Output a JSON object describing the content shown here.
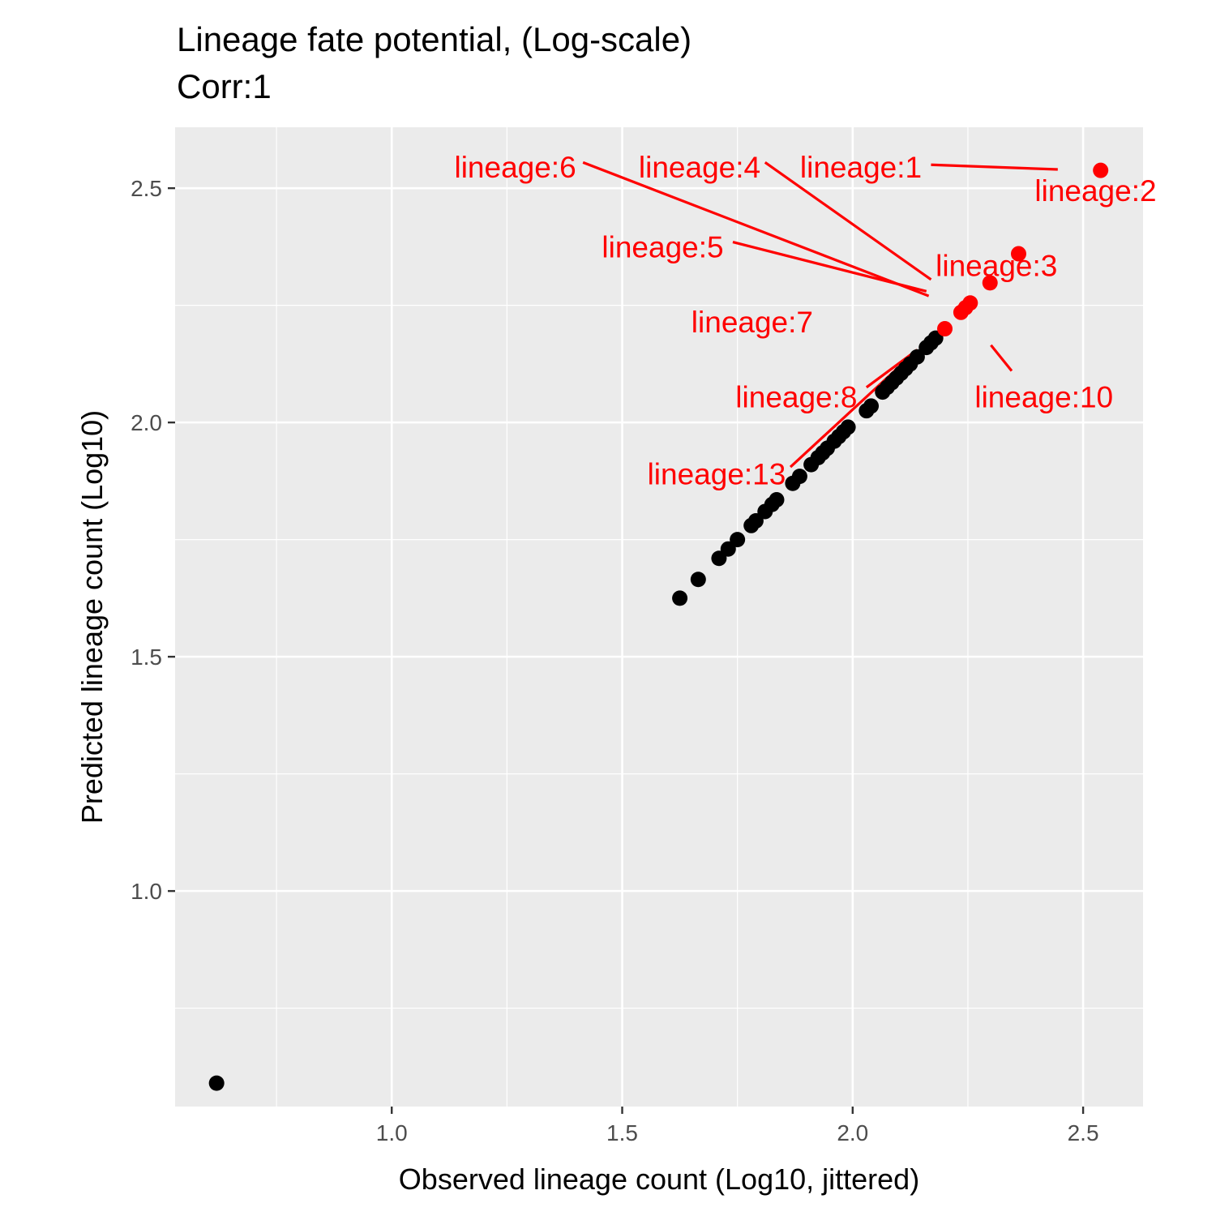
{
  "chart_data": {
    "type": "scatter",
    "title": "Lineage fate potential, (Log-scale)",
    "subtitle": "Corr:1",
    "xlabel": "Observed lineage count (Log10, jittered)",
    "ylabel": "Predicted lineage count (Log10)",
    "xlim": [
      0.53,
      2.63
    ],
    "ylim": [
      0.54,
      2.63
    ],
    "x_ticks": [
      1.0,
      1.5,
      2.0,
      2.5
    ],
    "y_ticks": [
      1.0,
      1.5,
      2.0,
      2.5
    ],
    "x_tick_labels": [
      "1.0",
      "1.5",
      "2.0",
      "2.5"
    ],
    "y_tick_labels": [
      "1.0",
      "1.5",
      "2.0",
      "2.5"
    ],
    "grid": true,
    "colors": {
      "panel": "#ebebeb",
      "grid": "#ffffff",
      "highlight": "#ff0000",
      "point": "#000000"
    },
    "points": [
      {
        "x": 0.62,
        "y": 0.59
      },
      {
        "x": 1.625,
        "y": 1.625
      },
      {
        "x": 1.665,
        "y": 1.665
      },
      {
        "x": 1.71,
        "y": 1.71
      },
      {
        "x": 1.73,
        "y": 1.73
      },
      {
        "x": 1.75,
        "y": 1.75
      },
      {
        "x": 1.78,
        "y": 1.78
      },
      {
        "x": 1.79,
        "y": 1.79
      },
      {
        "x": 1.81,
        "y": 1.81
      },
      {
        "x": 1.825,
        "y": 1.825
      },
      {
        "x": 1.835,
        "y": 1.835
      },
      {
        "x": 1.87,
        "y": 1.87
      },
      {
        "x": 1.885,
        "y": 1.885
      },
      {
        "x": 1.91,
        "y": 1.91
      },
      {
        "x": 1.925,
        "y": 1.925
      },
      {
        "x": 1.935,
        "y": 1.935
      },
      {
        "x": 1.945,
        "y": 1.945
      },
      {
        "x": 1.96,
        "y": 1.96
      },
      {
        "x": 1.97,
        "y": 1.97
      },
      {
        "x": 1.98,
        "y": 1.98
      },
      {
        "x": 1.99,
        "y": 1.99
      },
      {
        "x": 2.03,
        "y": 2.025
      },
      {
        "x": 2.04,
        "y": 2.035
      },
      {
        "x": 2.065,
        "y": 2.065
      },
      {
        "x": 2.075,
        "y": 2.075
      },
      {
        "x": 2.085,
        "y": 2.085
      },
      {
        "x": 2.095,
        "y": 2.095
      },
      {
        "x": 2.105,
        "y": 2.105
      },
      {
        "x": 2.115,
        "y": 2.115
      },
      {
        "x": 2.125,
        "y": 2.125
      },
      {
        "x": 2.14,
        "y": 2.14
      },
      {
        "x": 2.16,
        "y": 2.16
      },
      {
        "x": 2.17,
        "y": 2.17
      },
      {
        "x": 2.18,
        "y": 2.18
      },
      {
        "x": 2.2,
        "y": 2.2,
        "highlight": true
      },
      {
        "x": 2.235,
        "y": 2.235,
        "highlight": true
      },
      {
        "x": 2.245,
        "y": 2.245,
        "highlight": true
      },
      {
        "x": 2.255,
        "y": 2.255,
        "highlight": true
      },
      {
        "x": 2.298,
        "y": 2.298,
        "highlight": true
      },
      {
        "x": 2.36,
        "y": 2.36,
        "highlight": true
      },
      {
        "x": 2.538,
        "y": 2.538,
        "highlight": true
      }
    ],
    "annotations": [
      {
        "text": "lineage:1",
        "x": 2.15,
        "y": 2.545,
        "anchor": "end",
        "line": [
          2.17,
          2.55,
          2.445,
          2.54
        ]
      },
      {
        "text": "lineage:2",
        "x": 2.395,
        "y": 2.495,
        "anchor": "start",
        "line": null
      },
      {
        "text": "lineage:3",
        "x": 2.18,
        "y": 2.335,
        "anchor": "start",
        "line": null
      },
      {
        "text": "lineage:4",
        "x": 1.8,
        "y": 2.545,
        "anchor": "end",
        "line": [
          1.81,
          2.555,
          2.17,
          2.305
        ]
      },
      {
        "text": "lineage:5",
        "x": 1.72,
        "y": 2.375,
        "anchor": "end",
        "line": [
          1.74,
          2.385,
          2.16,
          2.28
        ]
      },
      {
        "text": "lineage:6",
        "x": 1.4,
        "y": 2.545,
        "anchor": "end",
        "line": [
          1.415,
          2.555,
          2.165,
          2.27
        ]
      },
      {
        "text": "lineage:7",
        "x": 1.65,
        "y": 2.215,
        "anchor": "start",
        "line": null
      },
      {
        "text": "lineage:8",
        "x": 2.01,
        "y": 2.055,
        "anchor": "end",
        "line": [
          2.03,
          2.075,
          2.14,
          2.155
        ]
      },
      {
        "text": "lineage:10",
        "x": 2.415,
        "y": 2.055,
        "anchor": "middle",
        "line": [
          2.3,
          2.165,
          2.345,
          2.11
        ]
      },
      {
        "text": "lineage:13",
        "x": 1.855,
        "y": 1.89,
        "anchor": "end",
        "line": [
          1.865,
          1.905,
          2.135,
          2.15
        ]
      }
    ]
  }
}
